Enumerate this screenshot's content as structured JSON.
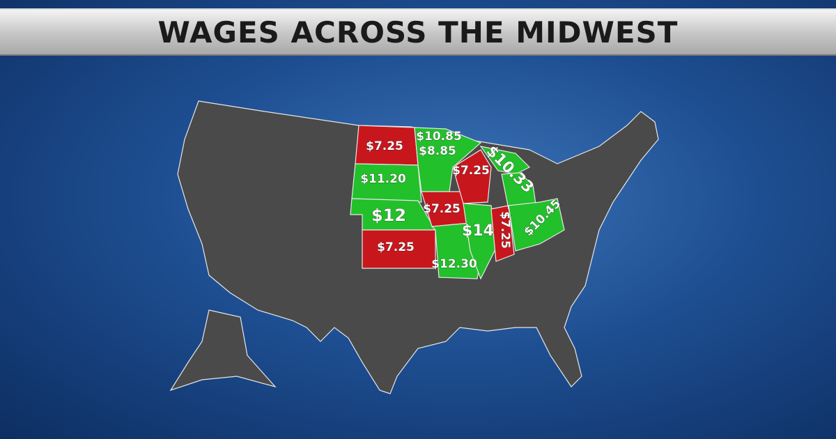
{
  "header": {
    "title": "WAGES ACROSS THE MIDWEST"
  },
  "map": {
    "labels": [
      "$7.25",
      "$10.85",
      "$8.85",
      "$11.20",
      "$12",
      "$7.25",
      "$7.25",
      "$10.33",
      "$14",
      "$7.25",
      "$10.45",
      "$7.25",
      "$12.30"
    ]
  }
}
